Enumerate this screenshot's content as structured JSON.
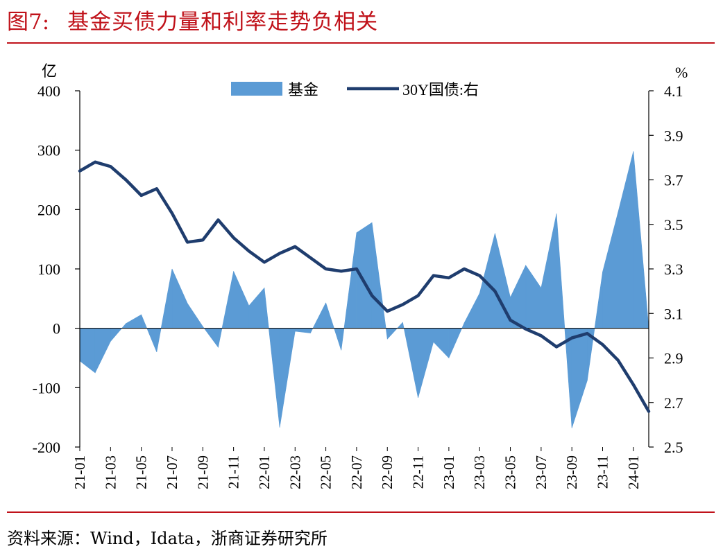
{
  "figure": {
    "label": "图7:",
    "title": "基金买债力量和利率走势负相关",
    "source": "资料来源：Wind，Idata，浙商证券研究所"
  },
  "colors": {
    "title_red": "#c0121a",
    "fund_area": "#5b9bd5",
    "bond_line": "#1f3d6e"
  },
  "chart_data": {
    "type": "area",
    "legend_position": "top-center",
    "grid": false,
    "x_tick_labels": [
      "21-01",
      "21-03",
      "21-05",
      "21-07",
      "21-09",
      "21-11",
      "22-01",
      "22-03",
      "22-05",
      "22-07",
      "22-09",
      "22-11",
      "23-01",
      "23-03",
      "23-05",
      "23-07",
      "23-09",
      "23-11",
      "24-01"
    ],
    "y_left": {
      "unit": "亿",
      "ylim": [
        -200,
        400
      ],
      "ticks": [
        "-200",
        "-100",
        "0",
        "100",
        "200",
        "300",
        "400"
      ]
    },
    "y_right": {
      "unit": "%",
      "ylim": [
        2.5,
        4.1
      ],
      "ticks": [
        "2.5",
        "2.7",
        "2.9",
        "3.1",
        "3.3",
        "3.5",
        "3.7",
        "3.9",
        "4.1"
      ]
    },
    "x": [
      "21-01",
      "21-02",
      "21-03",
      "21-04",
      "21-05",
      "21-06",
      "21-07",
      "21-08",
      "21-09",
      "21-10",
      "21-11",
      "21-12",
      "22-01",
      "22-02",
      "22-03",
      "22-04",
      "22-05",
      "22-06",
      "22-07",
      "22-08",
      "22-09",
      "22-10",
      "22-11",
      "22-12",
      "23-01",
      "23-02",
      "23-03",
      "23-04",
      "23-05",
      "23-06",
      "23-07",
      "23-08",
      "23-09",
      "23-10",
      "23-11",
      "23-12",
      "24-01",
      "24-02"
    ],
    "series": [
      {
        "name": "基金",
        "type": "area",
        "axis": "left",
        "values": [
          -55,
          -75,
          -22,
          8,
          23,
          -40,
          100,
          42,
          3,
          -32,
          96,
          38,
          68,
          -167,
          -5,
          -8,
          43,
          -37,
          161,
          178,
          -18,
          10,
          -117,
          -23,
          -50,
          9,
          59,
          160,
          52,
          106,
          68,
          193,
          -168,
          -88,
          95,
          195,
          298,
          0
        ]
      },
      {
        "name": "30Y国债:右",
        "type": "line",
        "axis": "right",
        "values": [
          3.74,
          3.78,
          3.76,
          3.7,
          3.63,
          3.66,
          3.55,
          3.42,
          3.43,
          3.52,
          3.44,
          3.38,
          3.33,
          3.37,
          3.4,
          3.35,
          3.3,
          3.29,
          3.3,
          3.18,
          3.11,
          3.14,
          3.18,
          3.27,
          3.26,
          3.3,
          3.27,
          3.2,
          3.07,
          3.03,
          3.0,
          2.95,
          2.99,
          3.01,
          2.96,
          2.89,
          2.78,
          2.66
        ]
      }
    ]
  }
}
